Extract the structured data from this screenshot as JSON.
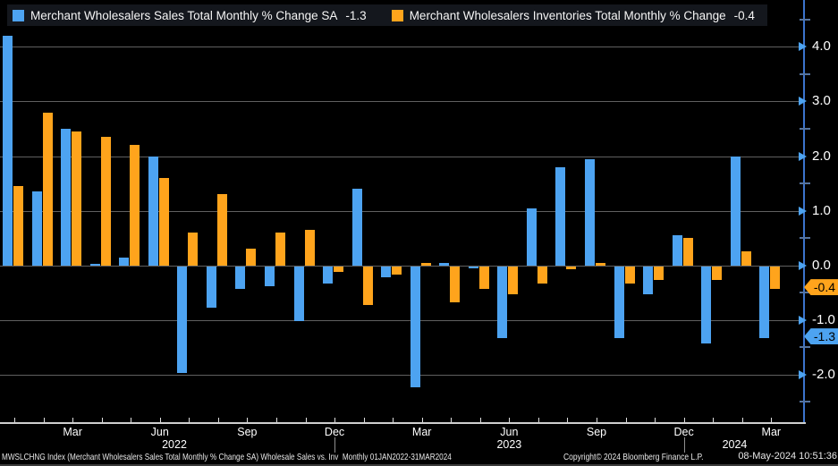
{
  "legend": {
    "items": [
      {
        "label": "Merchant Wholesalers Sales Total Monthly % Change SA",
        "value": "-1.3",
        "color": "#4da3f1"
      },
      {
        "label": "Merchant Wholesalers Inventories Total Monthly % Change",
        "value": "-0.4",
        "color": "#ffa41c"
      }
    ]
  },
  "chart_data": {
    "type": "bar",
    "title": "",
    "x": [
      "Jan 2022",
      "Feb 2022",
      "Mar 2022",
      "Apr 2022",
      "May 2022",
      "Jun 2022",
      "Jul 2022",
      "Aug 2022",
      "Sep 2022",
      "Oct 2022",
      "Nov 2022",
      "Dec 2022",
      "Jan 2023",
      "Feb 2023",
      "Mar 2023",
      "Apr 2023",
      "May 2023",
      "Jun 2023",
      "Jul 2023",
      "Aug 2023",
      "Sep 2023",
      "Oct 2023",
      "Nov 2023",
      "Dec 2023",
      "Jan 2024",
      "Feb 2024",
      "Mar 2024"
    ],
    "series": [
      {
        "name": "Merchant Wholesalers Sales Total Monthly % Change SA",
        "color": "#4da3f1",
        "values": [
          4.2,
          1.35,
          2.5,
          0.03,
          0.15,
          2.0,
          -1.95,
          -0.75,
          -0.4,
          -0.35,
          -1.0,
          -0.3,
          1.4,
          -0.2,
          -2.2,
          0.05,
          -0.03,
          -1.3,
          1.05,
          1.8,
          1.95,
          -1.3,
          -0.5,
          0.55,
          -1.4,
          2.0,
          -1.3
        ]
      },
      {
        "name": "Merchant Wholesalers Inventories Total Monthly % Change",
        "color": "#ffa41c",
        "values": [
          1.45,
          2.8,
          2.45,
          2.35,
          2.2,
          1.6,
          0.6,
          1.3,
          0.3,
          0.6,
          0.65,
          -0.1,
          -0.7,
          -0.15,
          0.05,
          -0.65,
          -0.4,
          -0.5,
          -0.3,
          -0.05,
          0.05,
          -0.3,
          -0.25,
          0.5,
          -0.25,
          0.25,
          -0.4
        ]
      }
    ],
    "ylim": [
      -2.9,
      4.6
    ],
    "y_major_ticks": [
      4.0,
      3.0,
      2.0,
      1.0,
      0.0,
      -1.0,
      -2.0
    ],
    "y_tick_labels": [
      "4.0",
      "3.0",
      "2.0",
      "1.0",
      "0.0",
      "-1.0",
      "-2.0"
    ],
    "y_minor_ticks": [
      4.5,
      3.5,
      2.5,
      1.5,
      0.5,
      -0.5,
      -1.5,
      -2.5
    ],
    "x_tick_labels": [
      {
        "index": 2,
        "label": "Mar"
      },
      {
        "index": 5,
        "label": "Jun"
      },
      {
        "index": 8,
        "label": "Sep"
      },
      {
        "index": 11,
        "label": "Dec"
      },
      {
        "index": 14,
        "label": "Mar"
      },
      {
        "index": 17,
        "label": "Jun"
      },
      {
        "index": 20,
        "label": "Sep"
      },
      {
        "index": 23,
        "label": "Dec"
      },
      {
        "index": 26,
        "label": "Mar"
      }
    ],
    "year_labels": [
      "2022",
      "2023",
      "2024"
    ],
    "badges": [
      {
        "label": "-0.4",
        "value": -0.4,
        "color": "#ffa41c",
        "series": "inventories"
      },
      {
        "label": "-1.3",
        "value": -1.3,
        "color": "#4da3f1",
        "series": "sales"
      }
    ],
    "grid": true,
    "legend_position": "top-left"
  },
  "footer": {
    "left": "MWSLCHNG Index (Merchant Wholesalers Sales Total Monthly % Change SA) Wholesale Sales vs. Inv  Monthly 01JAN2022-31MAR2024",
    "copyright": "Copyright© 2024 Bloomberg Finance L.P.",
    "datetime": "08-May-2024 10:51:36"
  }
}
